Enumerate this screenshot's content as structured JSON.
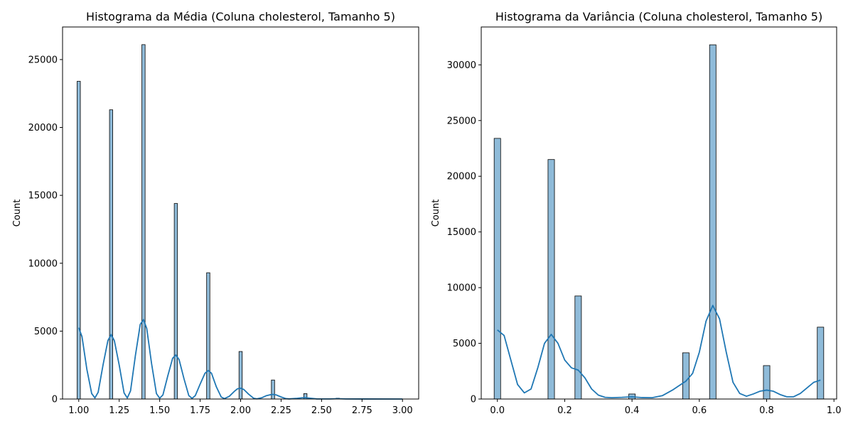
{
  "chart_data": [
    {
      "type": "bar",
      "title": "Histograma da Média (Coluna cholesterol, Tamanho 5)",
      "xlabel": "",
      "ylabel": "Count",
      "xlim": [
        0.9,
        3.1
      ],
      "ylim": [
        0,
        27400
      ],
      "xticks": [
        "1.00",
        "1.25",
        "1.50",
        "1.75",
        "2.00",
        "2.25",
        "2.50",
        "2.75",
        "3.00"
      ],
      "xtick_values": [
        1.0,
        1.25,
        1.5,
        1.75,
        2.0,
        2.25,
        2.5,
        2.75,
        3.0
      ],
      "yticks": [
        "0",
        "5000",
        "10000",
        "15000",
        "20000",
        "25000"
      ],
      "ytick_values": [
        0,
        5000,
        10000,
        15000,
        20000,
        25000
      ],
      "bar_width": 0.02,
      "bars": [
        {
          "x": 1.0,
          "value": 23400
        },
        {
          "x": 1.2,
          "value": 21300
        },
        {
          "x": 1.4,
          "value": 26100
        },
        {
          "x": 1.6,
          "value": 14400
        },
        {
          "x": 1.8,
          "value": 9300
        },
        {
          "x": 2.0,
          "value": 3500
        },
        {
          "x": 2.2,
          "value": 1400
        },
        {
          "x": 2.4,
          "value": 400
        },
        {
          "x": 2.6,
          "value": 60
        }
      ],
      "kde": [
        [
          1.0,
          5250
        ],
        [
          1.02,
          4600
        ],
        [
          1.05,
          2200
        ],
        [
          1.08,
          400
        ],
        [
          1.1,
          80
        ],
        [
          1.12,
          500
        ],
        [
          1.15,
          2500
        ],
        [
          1.18,
          4300
        ],
        [
          1.2,
          4750
        ],
        [
          1.22,
          4300
        ],
        [
          1.25,
          2500
        ],
        [
          1.28,
          450
        ],
        [
          1.3,
          80
        ],
        [
          1.32,
          600
        ],
        [
          1.35,
          3200
        ],
        [
          1.38,
          5500
        ],
        [
          1.4,
          5850
        ],
        [
          1.42,
          5200
        ],
        [
          1.45,
          2600
        ],
        [
          1.48,
          400
        ],
        [
          1.5,
          60
        ],
        [
          1.52,
          300
        ],
        [
          1.55,
          1700
        ],
        [
          1.58,
          3000
        ],
        [
          1.6,
          3250
        ],
        [
          1.62,
          2900
        ],
        [
          1.65,
          1500
        ],
        [
          1.68,
          250
        ],
        [
          1.7,
          50
        ],
        [
          1.72,
          250
        ],
        [
          1.75,
          1100
        ],
        [
          1.78,
          1900
        ],
        [
          1.8,
          2100
        ],
        [
          1.82,
          1900
        ],
        [
          1.85,
          900
        ],
        [
          1.88,
          150
        ],
        [
          1.9,
          30
        ],
        [
          1.93,
          200
        ],
        [
          1.96,
          550
        ],
        [
          1.98,
          750
        ],
        [
          2.0,
          800
        ],
        [
          2.02,
          700
        ],
        [
          2.05,
          350
        ],
        [
          2.08,
          60
        ],
        [
          2.1,
          15
        ],
        [
          2.13,
          90
        ],
        [
          2.16,
          250
        ],
        [
          2.19,
          330
        ],
        [
          2.2,
          340
        ],
        [
          2.22,
          300
        ],
        [
          2.25,
          150
        ],
        [
          2.28,
          30
        ],
        [
          2.3,
          10
        ],
        [
          2.35,
          50
        ],
        [
          2.38,
          90
        ],
        [
          2.4,
          95
        ],
        [
          2.43,
          60
        ],
        [
          2.47,
          10
        ],
        [
          2.55,
          5
        ],
        [
          2.6,
          25
        ],
        [
          2.65,
          5
        ],
        [
          2.75,
          2
        ],
        [
          3.0,
          1
        ]
      ]
    },
    {
      "type": "bar",
      "title": "Histograma da Variância (Coluna cholesterol, Tamanho 5)",
      "xlabel": "",
      "ylabel": "Count",
      "xlim": [
        -0.048,
        1.008
      ],
      "ylim": [
        0,
        33400
      ],
      "xticks": [
        "0.0",
        "0.2",
        "0.4",
        "0.6",
        "0.8",
        "1.0"
      ],
      "xtick_values": [
        0.0,
        0.2,
        0.4,
        0.6,
        0.8,
        1.0
      ],
      "yticks": [
        "0",
        "5000",
        "10000",
        "15000",
        "20000",
        "25000",
        "30000"
      ],
      "ytick_values": [
        0,
        5000,
        10000,
        15000,
        20000,
        25000,
        30000
      ],
      "bar_width": 0.0192,
      "bars": [
        {
          "x": 0.0,
          "value": 23400
        },
        {
          "x": 0.16,
          "value": 21500
        },
        {
          "x": 0.24,
          "value": 9250
        },
        {
          "x": 0.4,
          "value": 450
        },
        {
          "x": 0.56,
          "value": 4150
        },
        {
          "x": 0.64,
          "value": 31800
        },
        {
          "x": 0.8,
          "value": 3000
        },
        {
          "x": 0.96,
          "value": 6450
        }
      ],
      "kde": [
        [
          0.0,
          6200
        ],
        [
          0.02,
          5700
        ],
        [
          0.04,
          3500
        ],
        [
          0.06,
          1300
        ],
        [
          0.08,
          550
        ],
        [
          0.1,
          900
        ],
        [
          0.12,
          2800
        ],
        [
          0.14,
          5000
        ],
        [
          0.16,
          5800
        ],
        [
          0.18,
          5000
        ],
        [
          0.2,
          3500
        ],
        [
          0.22,
          2800
        ],
        [
          0.24,
          2600
        ],
        [
          0.26,
          1900
        ],
        [
          0.28,
          900
        ],
        [
          0.3,
          350
        ],
        [
          0.32,
          150
        ],
        [
          0.34,
          120
        ],
        [
          0.37,
          150
        ],
        [
          0.4,
          200
        ],
        [
          0.43,
          130
        ],
        [
          0.46,
          120
        ],
        [
          0.49,
          300
        ],
        [
          0.52,
          800
        ],
        [
          0.54,
          1200
        ],
        [
          0.56,
          1600
        ],
        [
          0.58,
          2300
        ],
        [
          0.6,
          4200
        ],
        [
          0.62,
          7000
        ],
        [
          0.64,
          8400
        ],
        [
          0.66,
          7200
        ],
        [
          0.68,
          4200
        ],
        [
          0.7,
          1500
        ],
        [
          0.72,
          500
        ],
        [
          0.74,
          250
        ],
        [
          0.76,
          450
        ],
        [
          0.78,
          700
        ],
        [
          0.8,
          800
        ],
        [
          0.82,
          700
        ],
        [
          0.84,
          400
        ],
        [
          0.86,
          200
        ],
        [
          0.88,
          200
        ],
        [
          0.9,
          500
        ],
        [
          0.92,
          1000
        ],
        [
          0.94,
          1500
        ],
        [
          0.96,
          1700
        ]
      ]
    }
  ],
  "colors": {
    "bar_fill": "#1f77b4",
    "bar_fill_opacity": 0.5,
    "bar_edge": "#000000",
    "kde_line": "#1f77b4"
  }
}
